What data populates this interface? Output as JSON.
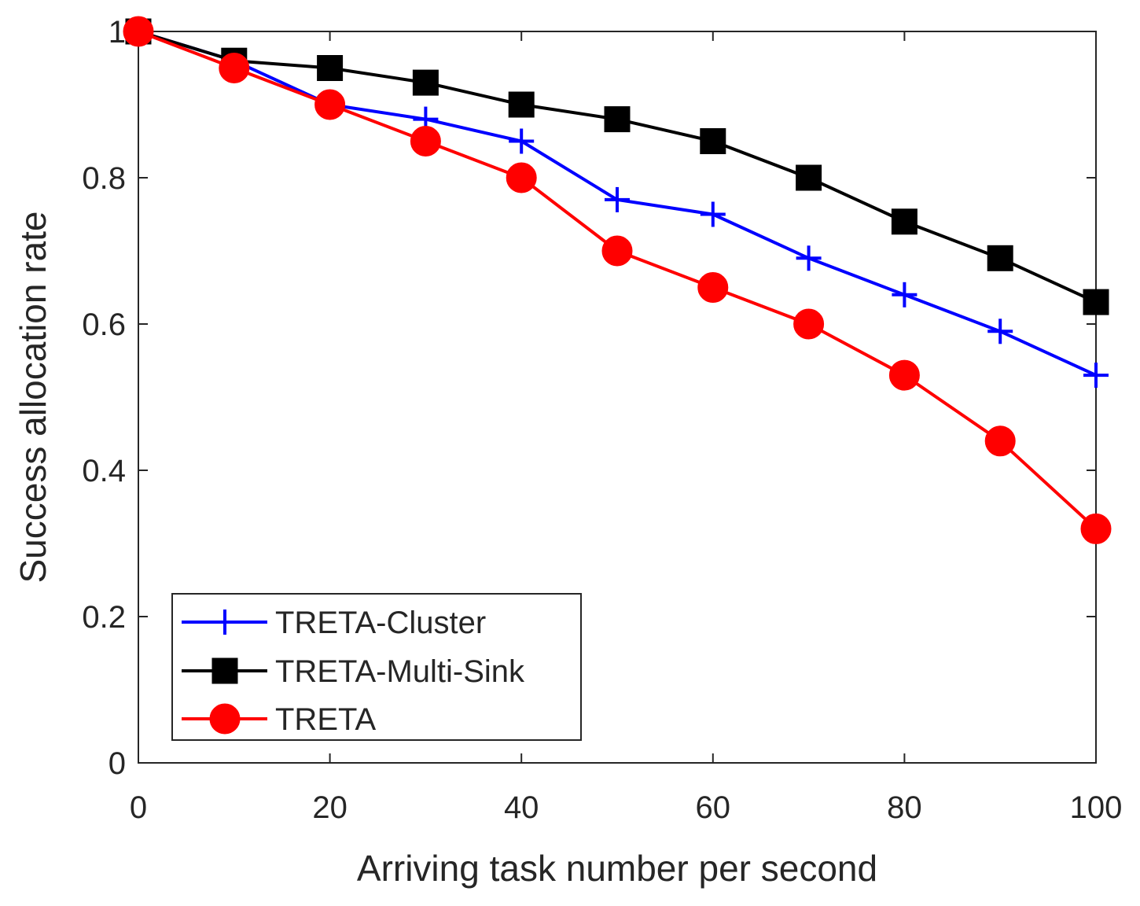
{
  "chart_data": {
    "type": "line",
    "title": "",
    "xlabel": "Arriving task number per second",
    "ylabel": "Success allocation rate",
    "xlim": [
      0,
      100
    ],
    "ylim": [
      0,
      1
    ],
    "x_ticks": [
      0,
      20,
      40,
      60,
      80,
      100
    ],
    "x_tick_labels": [
      "0",
      "20",
      "40",
      "60",
      "80",
      "100"
    ],
    "y_ticks": [
      0,
      0.2,
      0.4,
      0.6,
      0.8,
      1
    ],
    "y_tick_labels": [
      "0",
      "0.2",
      "0.4",
      "0.6",
      "0.8",
      "1"
    ],
    "grid": false,
    "legend_position": "bottom-left",
    "x": [
      0,
      10,
      20,
      30,
      40,
      50,
      60,
      70,
      80,
      90,
      100
    ],
    "series": [
      {
        "name": "TRETA-Cluster",
        "color": "#0000ff",
        "marker": "plus",
        "values": [
          1.0,
          0.96,
          0.9,
          0.88,
          0.85,
          0.77,
          0.75,
          0.69,
          0.64,
          0.59,
          0.53
        ]
      },
      {
        "name": "TRETA-Multi-Sink",
        "color": "#000000",
        "marker": "square",
        "values": [
          1.0,
          0.96,
          0.95,
          0.93,
          0.9,
          0.88,
          0.85,
          0.8,
          0.74,
          0.69,
          0.63
        ]
      },
      {
        "name": "TRETA",
        "color": "#ff0000",
        "marker": "circle",
        "values": [
          1.0,
          0.95,
          0.9,
          0.85,
          0.8,
          0.7,
          0.65,
          0.6,
          0.53,
          0.44,
          0.32
        ]
      }
    ]
  }
}
